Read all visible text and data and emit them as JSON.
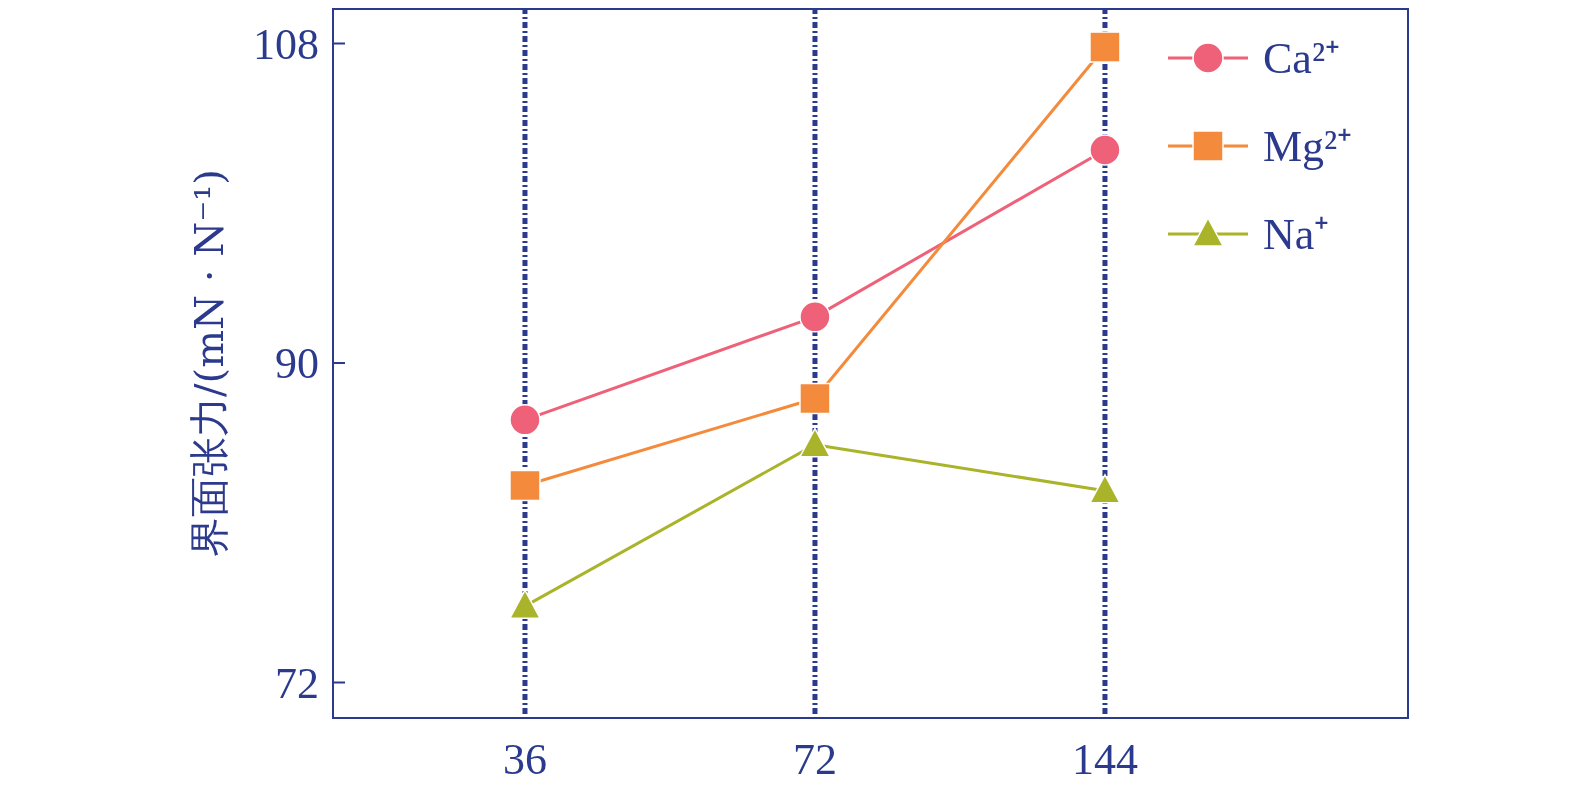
{
  "chart_data": {
    "type": "line",
    "ylabel": "界面张力/(mN · N⁻¹)",
    "categories": [
      "36",
      "72",
      "144"
    ],
    "series": [
      {
        "name": "Ca²⁺",
        "color": "#ef6079",
        "marker": "circle",
        "values": [
          86.8,
          92.6,
          102.0
        ]
      },
      {
        "name": "Mg²⁺",
        "color": "#f48a3c",
        "marker": "square",
        "values": [
          83.1,
          88.0,
          107.8
        ]
      },
      {
        "name": "Na⁺",
        "color": "#a9b42a",
        "marker": "triangle",
        "values": [
          76.3,
          85.4,
          82.8
        ]
      }
    ],
    "ylim": [
      70,
      110
    ],
    "yticks": [
      72,
      90,
      108
    ],
    "grid": "x",
    "legend": "top right",
    "line_style": "solid"
  }
}
